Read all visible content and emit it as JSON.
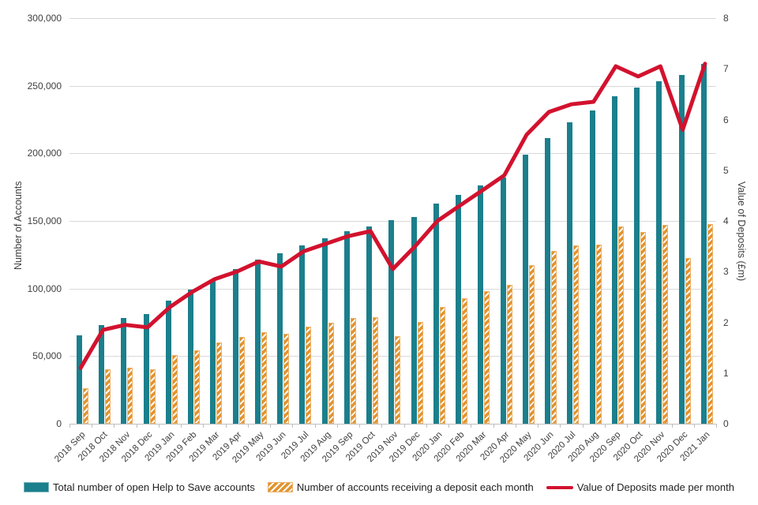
{
  "chart_data": {
    "type": "combo",
    "categories": [
      "2018 Sep",
      "2018 Oct",
      "2018 Nov",
      "2018 Dec",
      "2019 Jan",
      "2019 Feb",
      "2019 Mar",
      "2019 Apr",
      "2019 May",
      "2019 Jun",
      "2019 Jul",
      "2019 Aug",
      "2019 Sep",
      "2019 Oct",
      "2019 Nov",
      "2019 Dec",
      "2020 Jan",
      "2020 Feb",
      "2020 Mar",
      "2020 Apr",
      "2020 May",
      "2020 Jun",
      "2020 Jul",
      "2020 Aug",
      "2020 Sep",
      "2020 Oct",
      "2020 Nov",
      "2020 Dec",
      "2021 Jan"
    ],
    "series": [
      {
        "name": "Total number of open Help to Save accounts",
        "type": "bar",
        "axis": "left",
        "color": "#1b7f8c",
        "hatch": false,
        "values": [
          65500,
          73000,
          78000,
          81000,
          91000,
          99000,
          106500,
          114500,
          121500,
          126000,
          132000,
          137000,
          142500,
          146000,
          150500,
          153000,
          163000,
          169500,
          176000,
          182000,
          199000,
          211000,
          223000,
          231500,
          242000,
          248500,
          253500,
          258000,
          266000
        ]
      },
      {
        "name": "Number of accounts receiving a deposit each month",
        "type": "bar",
        "axis": "left",
        "color": "#e2932f",
        "hatch": true,
        "values": [
          26000,
          40000,
          41500,
          40500,
          50500,
          54500,
          60000,
          64000,
          67500,
          66500,
          72000,
          75000,
          78000,
          79000,
          65000,
          75500,
          86500,
          93000,
          98000,
          102500,
          117500,
          128000,
          132000,
          132500,
          146000,
          142000,
          147000,
          122500,
          147500
        ]
      },
      {
        "name": "Value of Deposits made per month",
        "type": "line",
        "axis": "right",
        "color": "#d2122e",
        "values": [
          1.1,
          1.85,
          1.95,
          1.9,
          2.3,
          2.6,
          2.85,
          3.0,
          3.2,
          3.1,
          3.4,
          3.55,
          3.7,
          3.8,
          3.05,
          3.5,
          4.0,
          4.3,
          4.6,
          4.9,
          5.7,
          6.15,
          6.3,
          6.35,
          7.05,
          6.85,
          7.05,
          5.8,
          7.1
        ]
      }
    ],
    "left_axis": {
      "label": "Number of Accounts",
      "min": 0,
      "max": 300000,
      "step": 50000
    },
    "right_axis": {
      "label": "Value of Deposits (£m)",
      "min": 0,
      "max": 8,
      "step": 1
    },
    "grid": true,
    "legend_position": "bottom",
    "colors": {
      "grid": "#d9d9d9",
      "axis": "#bfbfbf",
      "tick_text": "#404040",
      "teal": "#1b7f8c",
      "orange": "#e2932f",
      "red": "#d2122e"
    }
  }
}
